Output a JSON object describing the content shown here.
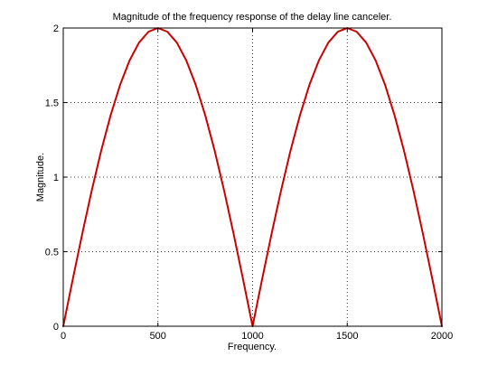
{
  "chart_data": {
    "type": "line",
    "title": "Magnitude of the frequency response of the delay line canceler.",
    "xlabel": "Frequency.",
    "ylabel": "Magnitude.",
    "xlim": [
      0,
      2000
    ],
    "ylim": [
      0,
      2
    ],
    "xticks": [
      0,
      500,
      1000,
      1500,
      2000
    ],
    "xtick_labels": [
      "0",
      "500",
      "1000",
      "1500",
      "2000"
    ],
    "yticks": [
      0,
      0.5,
      1,
      1.5,
      2
    ],
    "ytick_labels": [
      "0",
      "0.5",
      "1",
      "1.5",
      "2"
    ],
    "grid": true,
    "series": [
      {
        "color": "#cc0000",
        "x": [
          0,
          50,
          100,
          150,
          200,
          250,
          300,
          350,
          400,
          450,
          500,
          550,
          600,
          650,
          700,
          750,
          800,
          850,
          900,
          950,
          1000,
          1050,
          1100,
          1150,
          1200,
          1250,
          1300,
          1350,
          1400,
          1450,
          1500,
          1550,
          1600,
          1650,
          1700,
          1750,
          1800,
          1850,
          1900,
          1950,
          2000
        ],
        "y": [
          0,
          0.313,
          0.618,
          0.908,
          1.176,
          1.414,
          1.618,
          1.782,
          1.902,
          1.975,
          2.0,
          1.975,
          1.902,
          1.782,
          1.618,
          1.414,
          1.176,
          0.908,
          0.618,
          0.313,
          0,
          0.313,
          0.618,
          0.908,
          1.176,
          1.414,
          1.618,
          1.782,
          1.902,
          1.975,
          2.0,
          1.975,
          1.902,
          1.782,
          1.618,
          1.414,
          1.176,
          0.908,
          0.618,
          0.313,
          0
        ]
      }
    ]
  }
}
